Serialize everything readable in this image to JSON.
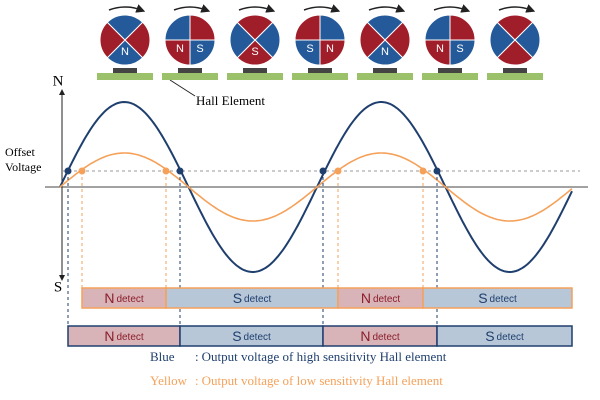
{
  "axis": {
    "top": "N",
    "bottom": "S",
    "offset": [
      "Offset",
      "Voltage"
    ]
  },
  "hall_label": "Hall Element",
  "magnets": [
    [
      "N"
    ],
    [
      "N",
      "S"
    ],
    [
      "S"
    ],
    [
      "S",
      "N"
    ],
    [
      "N"
    ],
    [
      "N",
      "S"
    ],
    []
  ],
  "orange_row": [
    {
      "pole": "N",
      "word": "detect"
    },
    {
      "pole": "S",
      "word": "detect"
    },
    {
      "pole": "N",
      "word": "detect"
    },
    {
      "pole": "S",
      "word": "detect"
    }
  ],
  "blue_row": [
    {
      "pole": "N",
      "word": "detect"
    },
    {
      "pole": "S",
      "word": "detect"
    },
    {
      "pole": "N",
      "word": "detect"
    },
    {
      "pole": "S",
      "word": "detect"
    }
  ],
  "legend": [
    {
      "name": "Blue",
      "sep": ":",
      "text": "Output voltage of high sensitivity Hall element"
    },
    {
      "name": "Yellow",
      "sep": ":",
      "text": "Output voltage of low sensitivity Hall element"
    }
  ]
}
